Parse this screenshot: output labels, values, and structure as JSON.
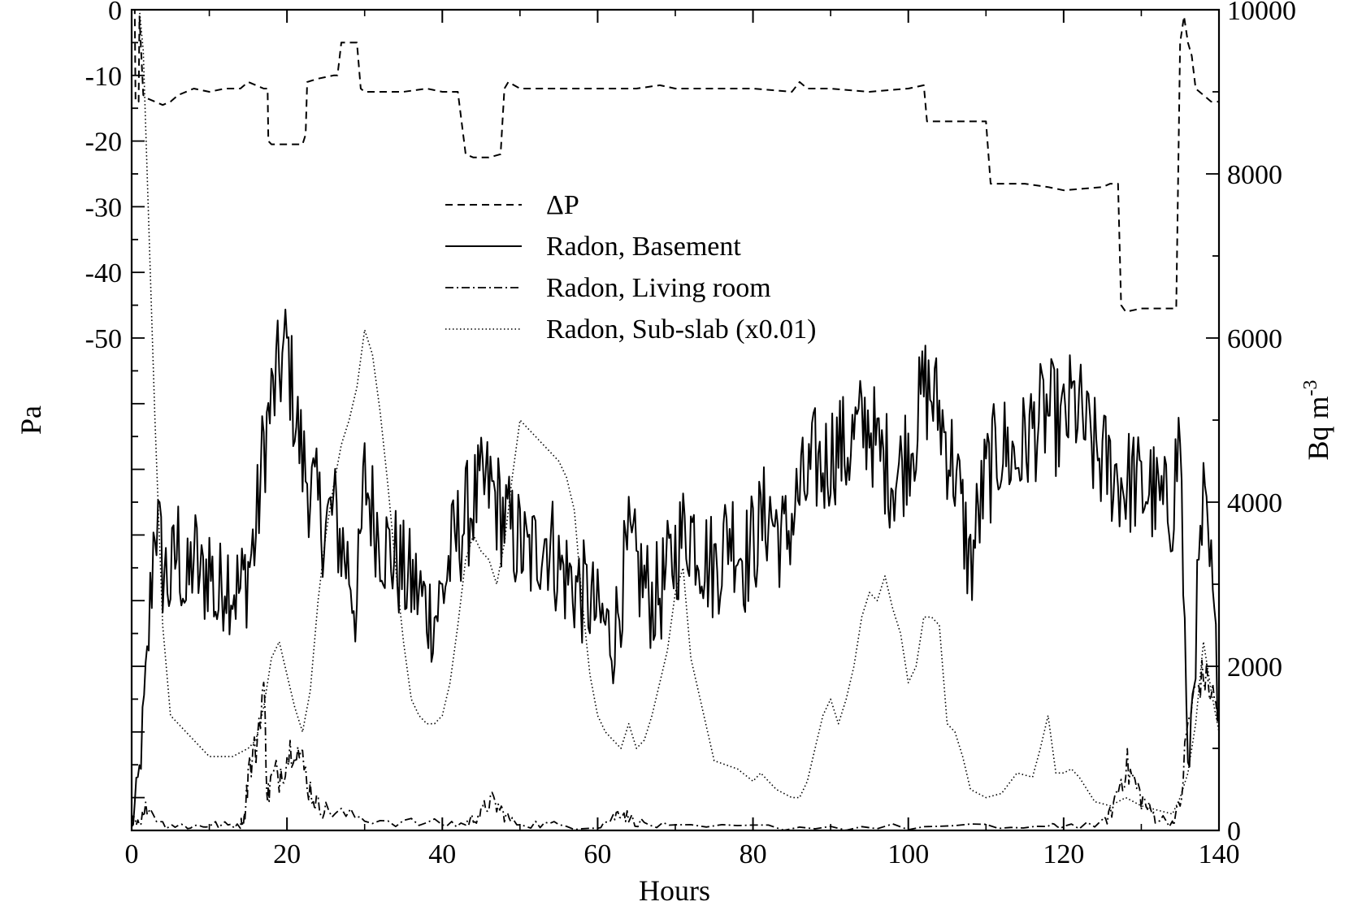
{
  "chart_data": {
    "type": "line",
    "title": "",
    "xlabel": "Hours",
    "ylabel_left": "Pa",
    "ylabel_right": "Bq m-3",
    "ylabel_right_text": "Bq m",
    "ylabel_right_sup": "-3",
    "xlim": [
      0,
      140
    ],
    "ylim_left": [
      -125,
      0
    ],
    "ylim_right": [
      0,
      10000
    ],
    "grid": false,
    "legend_position": "upper-center",
    "xticks": [
      0,
      20,
      40,
      60,
      80,
      100,
      120,
      140
    ],
    "xtick_labels": [
      "0",
      "20",
      "40",
      "60",
      "80",
      "100",
      "120",
      "140"
    ],
    "yticks_left": [
      0,
      -10,
      -20,
      -30,
      -40,
      -50
    ],
    "ytick_labels_left": [
      "0",
      "-10",
      "-20",
      "-30",
      "-40",
      "-50"
    ],
    "yticks_right": [
      0,
      2000,
      4000,
      6000,
      8000,
      10000
    ],
    "ytick_labels_right": [
      "0",
      "2000",
      "4000",
      "6000",
      "8000",
      "10000"
    ],
    "series": [
      {
        "name": "ΔP",
        "axis": "left",
        "dash": "dashed",
        "x": [
          0,
          0.4,
          0.5,
          0.9,
          1.0,
          1.5,
          2,
          3,
          4,
          5,
          6,
          8,
          10,
          12,
          14,
          15,
          16,
          17,
          17.5,
          17.6,
          18,
          20,
          22,
          22.4,
          22.6,
          24,
          26,
          26.5,
          27,
          29,
          29.5,
          30,
          32,
          35,
          38,
          40,
          42,
          43,
          44,
          46,
          47.5,
          48,
          48.5,
          50,
          55,
          60,
          65,
          68,
          70,
          75,
          80,
          85,
          86,
          87,
          90,
          95,
          100,
          102,
          102.4,
          104,
          108,
          110,
          110.6,
          112,
          115,
          118,
          120,
          125,
          126,
          127,
          127.4,
          128,
          130,
          133,
          134.5,
          135,
          135.5,
          136,
          136.5,
          137,
          138,
          139,
          140
        ],
        "y": [
          0,
          0,
          -14,
          -14,
          -1,
          -13,
          -13.5,
          -14,
          -14.5,
          -14,
          -13,
          -12,
          -12.5,
          -12,
          -12,
          -11,
          -11.5,
          -12,
          -12,
          -20,
          -20.5,
          -20.5,
          -20.5,
          -19,
          -11,
          -10.5,
          -10,
          -10,
          -5,
          -5,
          -12,
          -12.5,
          -12.5,
          -12.5,
          -12,
          -12.5,
          -12.5,
          -22,
          -22.5,
          -22.5,
          -22,
          -12,
          -11,
          -12,
          -12,
          -12,
          -12,
          -11.5,
          -12,
          -12,
          -12,
          -12.5,
          -11,
          -12,
          -12,
          -12.5,
          -12,
          -11.5,
          -17,
          -17,
          -17,
          -17,
          -26.5,
          -26.5,
          -26.5,
          -27,
          -27.5,
          -27,
          -26.5,
          -26.5,
          -45,
          -46,
          -45.5,
          -45.5,
          -45.5,
          -5,
          -1,
          -5,
          -7,
          -12,
          -13,
          -14,
          -14
        ]
      },
      {
        "name": "Radon, Basement",
        "axis": "right",
        "dash": "solid",
        "x": [
          0,
          1,
          2,
          3,
          4,
          5,
          6,
          7,
          8,
          9,
          10,
          11,
          12,
          13,
          14,
          15,
          16,
          17,
          18,
          19,
          20,
          21,
          22,
          23,
          24,
          25,
          26,
          27,
          28,
          29,
          30,
          31,
          32,
          33,
          34,
          35,
          36,
          37,
          38,
          39,
          40,
          41,
          42,
          43,
          44,
          45,
          46,
          47,
          48,
          49,
          50,
          51,
          52,
          53,
          54,
          55,
          56,
          57,
          58,
          59,
          60,
          61,
          62,
          63,
          64,
          65,
          66,
          67,
          68,
          69,
          70,
          71,
          72,
          73,
          74,
          75,
          76,
          77,
          78,
          79,
          80,
          81,
          82,
          83,
          84,
          85,
          86,
          87,
          88,
          89,
          90,
          91,
          92,
          93,
          94,
          95,
          96,
          97,
          98,
          99,
          100,
          101,
          102,
          103,
          104,
          105,
          106,
          107,
          108,
          109,
          110,
          111,
          112,
          113,
          114,
          115,
          116,
          117,
          118,
          119,
          120,
          121,
          122,
          123,
          124,
          125,
          126,
          127,
          128,
          129,
          130,
          131,
          132,
          133,
          134,
          135,
          136,
          137,
          138,
          139,
          140
        ],
        "y": [
          0,
          700,
          2000,
          3900,
          3200,
          3000,
          3500,
          2800,
          3400,
          3000,
          3300,
          2700,
          3200,
          3000,
          2900,
          3200,
          3600,
          4700,
          5200,
          5600,
          5900,
          5100,
          4500,
          4200,
          3900,
          3700,
          3900,
          3500,
          3200,
          2700,
          4300,
          3900,
          3600,
          3400,
          3300,
          3100,
          3000,
          2900,
          2700,
          2600,
          2900,
          3300,
          3600,
          3800,
          4000,
          4100,
          4200,
          4000,
          3800,
          3600,
          3500,
          3300,
          3400,
          3600,
          3500,
          3200,
          3100,
          3000,
          2900,
          2800,
          2600,
          2500,
          2300,
          2900,
          3400,
          3200,
          3000,
          2800,
          2900,
          3100,
          3400,
          3600,
          3700,
          3500,
          3300,
          3200,
          3400,
          3700,
          3500,
          3300,
          3500,
          3700,
          3900,
          3700,
          3500,
          3800,
          4100,
          4200,
          4500,
          4400,
          4600,
          4700,
          4600,
          4800,
          4900,
          5000,
          4600,
          4500,
          4300,
          4400,
          4700,
          4900,
          5400,
          5300,
          5100,
          4700,
          4400,
          3800,
          3200,
          3800,
          4300,
          4500,
          4700,
          4600,
          4500,
          4700,
          4900,
          5000,
          5100,
          5000,
          4900,
          5200,
          5100,
          4800,
          4600,
          4500,
          4400,
          4300,
          4200,
          4300,
          4100,
          4200,
          4000,
          3900,
          4000,
          4900,
          600,
          2400,
          3900,
          3000,
          1500
        ],
        "note_noise": true
      },
      {
        "name": "Radon, Living room",
        "axis": "right",
        "dash": "dashdot",
        "x": [
          0,
          1,
          2,
          4,
          6,
          8,
          10,
          12,
          14,
          14.5,
          15,
          16,
          17,
          17.5,
          18,
          19,
          20,
          21,
          22,
          23,
          24,
          25,
          27,
          30,
          35,
          40,
          43,
          44,
          45,
          46,
          47,
          48,
          49,
          52,
          55,
          60,
          62,
          63,
          64,
          66,
          70,
          80,
          90,
          100,
          110,
          118,
          120,
          125,
          126,
          127,
          128,
          129,
          130,
          131,
          132,
          134,
          135,
          136,
          137,
          138,
          139,
          140
        ],
        "y": [
          200,
          100,
          300,
          80,
          60,
          50,
          70,
          60,
          80,
          150,
          700,
          1000,
          1800,
          400,
          600,
          700,
          900,
          1100,
          800,
          500,
          300,
          250,
          200,
          150,
          100,
          80,
          80,
          150,
          200,
          350,
          300,
          200,
          100,
          80,
          60,
          60,
          150,
          250,
          150,
          80,
          30,
          40,
          40,
          40,
          40,
          40,
          60,
          80,
          200,
          500,
          800,
          600,
          400,
          250,
          150,
          100,
          300,
          1300,
          1700,
          1900,
          1700,
          1400
        ],
        "note_noise": true
      },
      {
        "name": "Radon, Sub-slab (x0.01)",
        "axis": "right",
        "dash": "dotted",
        "x": [
          0,
          1,
          1.5,
          2,
          3,
          4,
          5,
          7,
          10,
          13,
          15,
          16,
          17,
          18,
          19,
          20,
          21,
          22,
          23,
          24,
          25,
          26,
          27,
          28,
          29,
          30,
          31,
          32,
          33,
          34,
          35,
          36,
          37,
          38,
          39,
          40,
          41,
          42,
          43,
          44,
          45,
          46,
          47,
          48,
          49,
          50,
          51,
          52,
          53,
          54,
          55,
          56,
          57,
          58,
          59,
          60,
          61,
          62,
          63,
          64,
          65,
          66,
          67,
          68,
          69,
          70,
          71,
          72,
          75,
          78,
          80,
          81,
          83,
          85,
          86,
          87,
          88,
          89,
          90,
          91,
          92,
          93,
          94,
          95,
          96,
          97,
          98,
          99,
          100,
          101,
          102,
          103,
          104,
          105,
          106,
          107,
          108,
          110,
          112,
          114,
          116,
          117,
          118,
          119,
          120,
          121,
          122,
          124,
          126,
          128,
          130,
          132,
          134,
          135,
          136,
          137,
          138,
          139,
          140
        ],
        "y": [
          10000,
          10000,
          9500,
          8000,
          5000,
          2500,
          1400,
          1200,
          900,
          900,
          1000,
          1100,
          1500,
          2100,
          2300,
          1900,
          1500,
          1200,
          1700,
          2800,
          3600,
          4200,
          4700,
          5000,
          5400,
          6100,
          5800,
          5100,
          4200,
          3200,
          2300,
          1600,
          1400,
          1300,
          1300,
          1400,
          1800,
          2500,
          3300,
          3600,
          3400,
          3300,
          3000,
          3500,
          4300,
          5000,
          4900,
          4800,
          4700,
          4600,
          4500,
          4300,
          3900,
          2800,
          1900,
          1400,
          1200,
          1100,
          1000,
          1300,
          1000,
          1100,
          1400,
          1800,
          2200,
          2900,
          3200,
          2100,
          850,
          750,
          600,
          700,
          500,
          400,
          400,
          600,
          1000,
          1400,
          1600,
          1300,
          1600,
          2000,
          2600,
          2900,
          2800,
          3100,
          2700,
          2400,
          1800,
          2000,
          2600,
          2600,
          2500,
          1300,
          1200,
          900,
          500,
          400,
          450,
          700,
          650,
          1000,
          1400,
          700,
          700,
          750,
          650,
          350,
          300,
          400,
          300,
          250,
          200,
          400,
          700,
          1300,
          2300,
          1700,
          1200
        ]
      }
    ]
  }
}
